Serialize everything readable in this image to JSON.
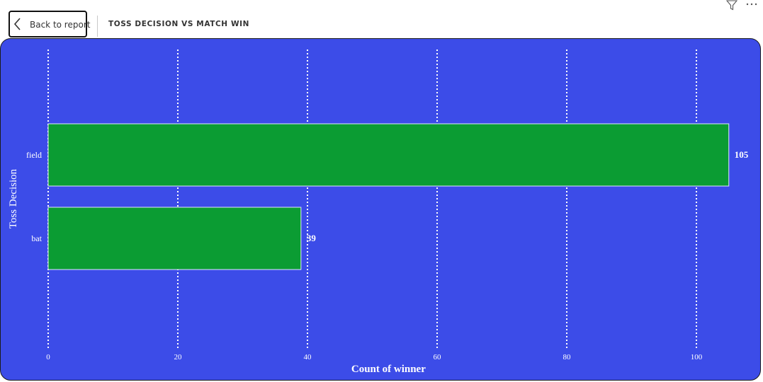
{
  "header": {
    "back_label": "Back to report",
    "title": "TOSS DECISION VS MATCH WIN"
  },
  "icons": {
    "back": "chevron-left-icon",
    "filter": "filter-icon",
    "more": "more-options-icon"
  },
  "colors": {
    "background": "#3c4ce8",
    "bar": "#0b9c33",
    "text": "#ffffff"
  },
  "chart_data": {
    "type": "bar",
    "orientation": "horizontal",
    "categories": [
      "field",
      "bat"
    ],
    "values": [
      105,
      39
    ],
    "xlabel": "Count of winner",
    "ylabel": "Toss Decision",
    "xlim": [
      0,
      105
    ],
    "xticks": [
      0,
      20,
      40,
      60,
      80,
      100
    ],
    "grid": "vertical dotted",
    "data_labels": true
  }
}
